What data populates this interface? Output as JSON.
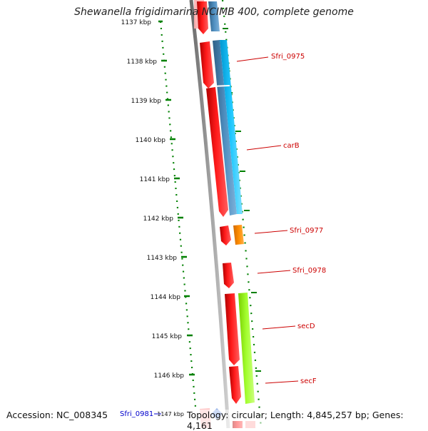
{
  "title": "Shewanella frigidimarina NCIMB 400, complete genome",
  "footer": {
    "accession": "Accession: NC_008345",
    "summary": "Topology: circular; Length: 4,845,257 bp; Genes: 4,161"
  },
  "ticks": [
    "1137 kbp",
    "1138 kbp",
    "1139 kbp",
    "1140 kbp",
    "1141 kbp",
    "1142 kbp",
    "1143 kbp",
    "1144 kbp",
    "1145 kbp",
    "1146 kbp",
    "1147 kbp"
  ],
  "genes": [
    "Sfri_0975",
    "carB",
    "Sfri_0977",
    "Sfri_0978",
    "secD",
    "secF",
    "Sfri_0981"
  ],
  "colors": {
    "cds_red": "#ff0000",
    "steel_blue": "#4682b4",
    "deep_sky_blue": "#00bfff",
    "orange": "#ff8c00",
    "green_yellow": "#a0ff20",
    "tick_green": "#008000",
    "label_red": "#cc0000",
    "label_blue": "#0000cc",
    "backbone": "#909090"
  }
}
